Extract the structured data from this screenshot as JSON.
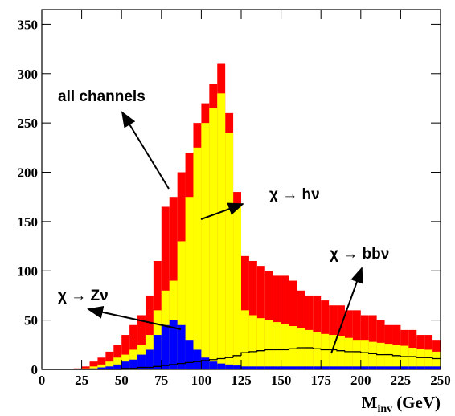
{
  "chart_data": {
    "type": "histogram",
    "x_label": "M",
    "x_label_sub": "inv",
    "x_label_unit": "(GeV)",
    "bins": [
      0,
      5,
      10,
      15,
      20,
      25,
      30,
      35,
      40,
      45,
      50,
      55,
      60,
      65,
      70,
      75,
      80,
      85,
      90,
      95,
      100,
      105,
      110,
      115,
      120,
      125,
      130,
      135,
      140,
      145,
      150,
      155,
      160,
      165,
      170,
      175,
      180,
      185,
      190,
      195,
      200,
      205,
      210,
      215,
      220,
      225,
      230,
      235,
      240,
      245,
      250
    ],
    "series": [
      {
        "name": "all channels",
        "color": "#ff0000",
        "style": "fill",
        "values": [
          0,
          0,
          0,
          0,
          1,
          3,
          8,
          12,
          18,
          25,
          35,
          45,
          55,
          75,
          110,
          165,
          175,
          200,
          220,
          250,
          270,
          290,
          310,
          260,
          180,
          115,
          110,
          105,
          100,
          95,
          95,
          90,
          80,
          75,
          75,
          70,
          65,
          65,
          60,
          60,
          55,
          55,
          50,
          45,
          45,
          40,
          40,
          35,
          35,
          30
        ]
      },
      {
        "name": "χ → hν",
        "color": "#ffff00",
        "style": "fill",
        "values": [
          0,
          0,
          0,
          0,
          0,
          1,
          3,
          5,
          8,
          12,
          15,
          20,
          25,
          35,
          60,
          80,
          90,
          130,
          175,
          225,
          250,
          265,
          280,
          240,
          165,
          60,
          55,
          52,
          50,
          48,
          46,
          44,
          42,
          40,
          38,
          36,
          35,
          34,
          32,
          30,
          30,
          28,
          27,
          26,
          25,
          24,
          22,
          21,
          20,
          18
        ]
      },
      {
        "name": "χ → Zν",
        "color": "#0000ff",
        "style": "fill",
        "values": [
          0,
          0,
          0,
          0,
          0,
          0,
          1,
          2,
          3,
          5,
          8,
          10,
          15,
          20,
          35,
          45,
          50,
          45,
          30,
          20,
          12,
          8,
          6,
          5,
          4,
          3,
          3,
          3,
          3,
          3,
          3,
          3,
          3,
          3,
          3,
          3,
          3,
          3,
          3,
          3,
          3,
          3,
          3,
          3,
          3,
          3,
          3,
          3,
          3,
          3
        ]
      },
      {
        "name": "χ → bbν",
        "color": "#000000",
        "style": "step",
        "values": [
          0,
          0,
          0,
          0,
          0,
          0,
          0,
          0,
          0,
          0,
          1,
          1,
          2,
          2,
          3,
          4,
          5,
          6,
          7,
          8,
          9,
          10,
          11,
          12,
          14,
          17,
          18,
          19,
          20,
          20,
          20,
          21,
          22,
          22,
          21,
          20,
          20,
          19,
          18,
          18,
          17,
          16,
          15,
          15,
          14,
          13,
          13,
          12,
          12,
          11
        ]
      }
    ],
    "xlim": [
      0,
      250
    ],
    "ylim": [
      0,
      365
    ],
    "xticks": [
      0,
      25,
      50,
      75,
      100,
      125,
      150,
      175,
      200,
      225,
      250
    ],
    "yticks": [
      0,
      50,
      100,
      150,
      200,
      250,
      300,
      350
    ]
  }
}
